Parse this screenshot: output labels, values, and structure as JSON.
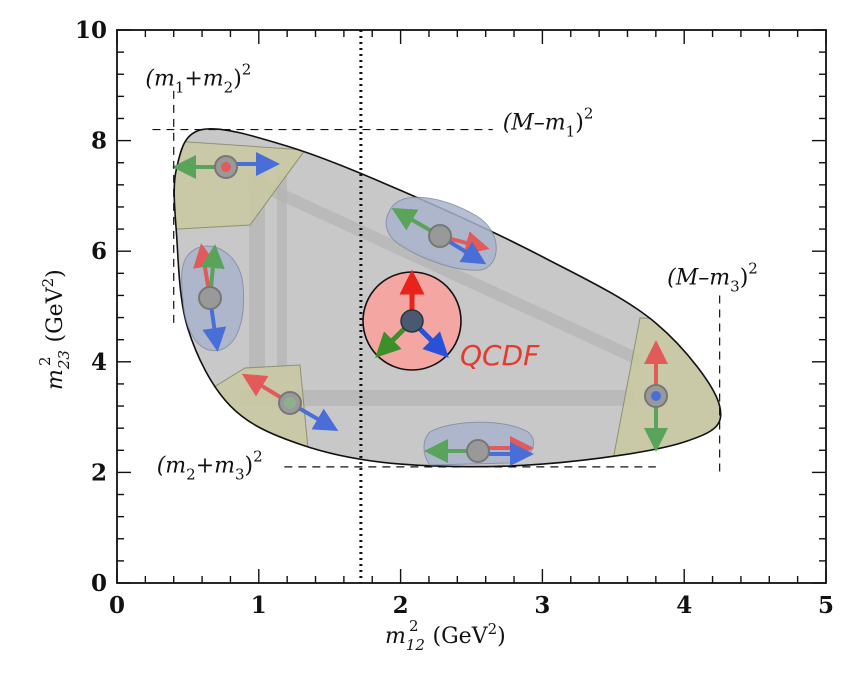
{
  "chart_data": {
    "type": "scatter",
    "title": "",
    "xlabel": "m",
    "xlabel_sub": "12",
    "xlabel_sup": "2",
    "xlabel_unit": "(GeV",
    "xlabel_unit_close": ")",
    "ylabel": "m",
    "ylabel_sub": "23",
    "ylabel_sup": "2",
    "ylabel_unit": "(GeV",
    "ylabel_unit_close": ")",
    "xlim": [
      0,
      5
    ],
    "ylim": [
      0,
      10
    ],
    "xticks": [
      "0",
      "1",
      "2",
      "3",
      "4",
      "5"
    ],
    "yticks": [
      "0",
      "2",
      "4",
      "6",
      "8",
      "10"
    ],
    "grid": false,
    "dalitz_boundary": [
      [
        0.42,
        7.5
      ],
      [
        0.6,
        8.2
      ],
      [
        1.2,
        7.9
      ],
      [
        2.0,
        7.1
      ],
      [
        3.0,
        5.9
      ],
      [
        3.8,
        4.7
      ],
      [
        4.25,
        3.2
      ],
      [
        4.0,
        2.55
      ],
      [
        3.0,
        2.15
      ],
      [
        2.0,
        2.15
      ],
      [
        1.3,
        2.5
      ],
      [
        0.8,
        3.2
      ],
      [
        0.5,
        4.6
      ],
      [
        0.42,
        6.3
      ]
    ],
    "reference_lines": {
      "vertical_dotted_x": 1.72,
      "m1_plus_m2_sq": 0.4,
      "M_minus_m3_sq": 4.25,
      "M_minus_m1_sq": 8.2,
      "m2_plus_m3_sq": 2.1
    },
    "annotations": [
      {
        "base": "(m",
        "sub1": "1",
        "mid": "+m",
        "sub2": "2",
        "close": ")",
        "sup": "2",
        "x": 0.2,
        "y": 9.0
      },
      {
        "base": "(M–m",
        "sub1": "1",
        "mid": "",
        "sub2": "",
        "close": ")",
        "sup": "2",
        "x": 2.72,
        "y": 8.2
      },
      {
        "base": "(M–m",
        "sub1": "3",
        "mid": "",
        "sub2": "",
        "close": ")",
        "sup": "2",
        "x": 3.88,
        "y": 5.4
      },
      {
        "base": "(m",
        "sub1": "2",
        "mid": "+m",
        "sub2": "3",
        "close": ")",
        "sup": "2",
        "x": 0.28,
        "y": 2.0
      }
    ],
    "label": "QCDF"
  },
  "colors": {
    "region_fill": "#c8c8c8",
    "corner_fill": "#c9c9a3",
    "edge_fill": "#a9b3cc",
    "arrow_red": "#e25a5a",
    "arrow_green": "#5aa35a",
    "arrow_blue": "#4a6ed8",
    "center_circle": "#f4a6a2",
    "qcdf_text": "#e8392f"
  }
}
